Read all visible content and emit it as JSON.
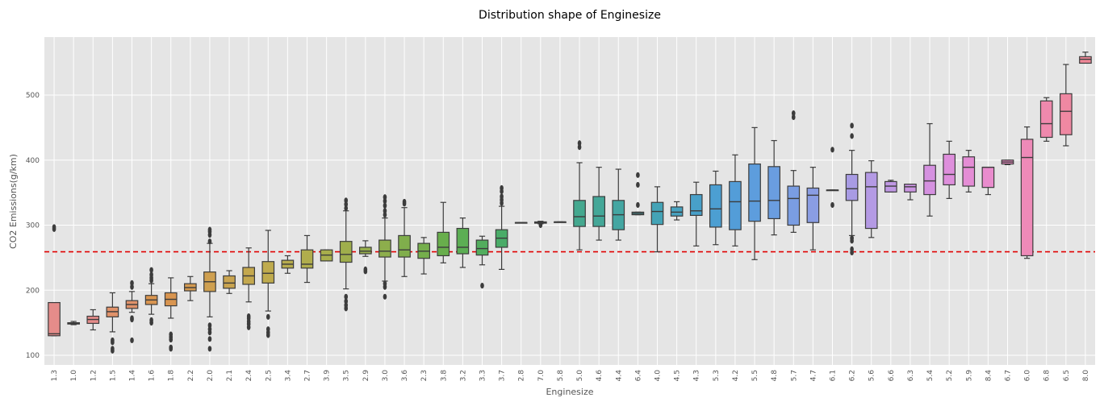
{
  "chart_data": {
    "type": "boxplot",
    "title": "Distribution shape of Enginesize",
    "xlabel": "Enginesize",
    "ylabel": "CO2 Emissions(g/km)",
    "ylim": [
      85,
      590
    ],
    "yticks": [
      100,
      200,
      300,
      400,
      500
    ],
    "grid": true,
    "reference_line": {
      "y": 259,
      "color": "#e00000",
      "style": "dashed"
    },
    "categories": [
      "1.3",
      "1.0",
      "1.2",
      "1.5",
      "1.4",
      "1.6",
      "1.8",
      "2.2",
      "2.0",
      "2.1",
      "2.4",
      "2.5",
      "3.4",
      "2.7",
      "3.9",
      "3.5",
      "2.9",
      "3.0",
      "3.6",
      "2.3",
      "3.8",
      "3.2",
      "3.3",
      "3.7",
      "2.8",
      "7.0",
      "5.8",
      "5.0",
      "4.6",
      "4.4",
      "6.4",
      "4.0",
      "4.5",
      "4.3",
      "5.3",
      "4.2",
      "5.5",
      "4.8",
      "5.7",
      "4.7",
      "6.1",
      "6.2",
      "5.6",
      "6.6",
      "6.3",
      "5.4",
      "5.2",
      "5.9",
      "8.4",
      "6.7",
      "6.0",
      "6.8",
      "6.5",
      "8.0"
    ],
    "boxes": [
      {
        "wlo": 130,
        "q1": 130,
        "med": 133,
        "q3": 181,
        "whi": 181,
        "fliers": [
          294,
          297
        ],
        "color": "#e58c8a"
      },
      {
        "wlo": 147,
        "q1": 148,
        "med": 149,
        "q3": 150,
        "whi": 152,
        "fliers": [],
        "color": "#e58c8a"
      },
      {
        "wlo": 139,
        "q1": 149,
        "med": 155,
        "q3": 160,
        "whi": 170,
        "fliers": [],
        "color": "#e58c8a"
      },
      {
        "wlo": 136,
        "q1": 159,
        "med": 167,
        "q3": 174,
        "whi": 196,
        "fliers": [
          107,
          110,
          120,
          123
        ],
        "color": "#e0926a"
      },
      {
        "wlo": 166,
        "q1": 172,
        "med": 178,
        "q3": 184,
        "whi": 198,
        "fliers": [
          123,
          155,
          157,
          205,
          211
        ],
        "color": "#e0926a"
      },
      {
        "wlo": 163,
        "q1": 178,
        "med": 185,
        "q3": 192,
        "whi": 210,
        "fliers": [
          150,
          154,
          215,
          219,
          224,
          231
        ],
        "color": "#d99550"
      },
      {
        "wlo": 157,
        "q1": 176,
        "med": 186,
        "q3": 196,
        "whi": 219,
        "fliers": [
          110,
          112,
          124,
          128,
          132
        ],
        "color": "#d99550"
      },
      {
        "wlo": 184,
        "q1": 199,
        "med": 204,
        "q3": 210,
        "whi": 221,
        "fliers": [],
        "color": "#d49a50"
      },
      {
        "wlo": 159,
        "q1": 198,
        "med": 213,
        "q3": 228,
        "whi": 272,
        "fliers": [
          110,
          125,
          135,
          140,
          146,
          275,
          285,
          290,
          293
        ],
        "color": "#cfa050"
      },
      {
        "wlo": 195,
        "q1": 203,
        "med": 211,
        "q3": 222,
        "whi": 230,
        "fliers": [],
        "color": "#c9a450"
      },
      {
        "wlo": 182,
        "q1": 209,
        "med": 222,
        "q3": 235,
        "whi": 265,
        "fliers": [
          143,
          148,
          152,
          157,
          160
        ],
        "color": "#c4a84e"
      },
      {
        "wlo": 168,
        "q1": 211,
        "med": 226,
        "q3": 244,
        "whi": 292,
        "fliers": [
          131,
          135,
          140,
          159
        ],
        "color": "#bfab4e"
      },
      {
        "wlo": 226,
        "q1": 234,
        "med": 240,
        "q3": 246,
        "whi": 253,
        "fliers": [],
        "color": "#b7ac4e"
      },
      {
        "wlo": 212,
        "q1": 234,
        "med": 240,
        "q3": 262,
        "whi": 284,
        "fliers": [],
        "color": "#b0ad4d"
      },
      {
        "wlo": 245,
        "q1": 245,
        "med": 254,
        "q3": 262,
        "whi": 262,
        "fliers": [],
        "color": "#a8ae4c"
      },
      {
        "wlo": 202,
        "q1": 243,
        "med": 255,
        "q3": 275,
        "whi": 322,
        "fliers": [
          172,
          177,
          183,
          190,
          326,
          332,
          338
        ],
        "color": "#9fae4c"
      },
      {
        "wlo": 252,
        "q1": 256,
        "med": 260,
        "q3": 266,
        "whi": 276,
        "fliers": [
          229,
          232
        ],
        "color": "#96ae4c"
      },
      {
        "wlo": 214,
        "q1": 251,
        "med": 260,
        "q3": 277,
        "whi": 311,
        "fliers": [
          190,
          205,
          210,
          316,
          322,
          330,
          337,
          343
        ],
        "color": "#8dae4c"
      },
      {
        "wlo": 221,
        "q1": 251,
        "med": 262,
        "q3": 284,
        "whi": 327,
        "fliers": [
          333,
          336
        ],
        "color": "#80ae4c"
      },
      {
        "wlo": 225,
        "q1": 249,
        "med": 260,
        "q3": 272,
        "whi": 281,
        "fliers": [],
        "color": "#75ae4c"
      },
      {
        "wlo": 242,
        "q1": 253,
        "med": 266,
        "q3": 289,
        "whi": 335,
        "fliers": [],
        "color": "#68ae4c"
      },
      {
        "wlo": 235,
        "q1": 256,
        "med": 266,
        "q3": 295,
        "whi": 311,
        "fliers": [],
        "color": "#5cae54"
      },
      {
        "wlo": 239,
        "q1": 254,
        "med": 264,
        "q3": 277,
        "whi": 283,
        "fliers": [
          207
        ],
        "color": "#52ad5e"
      },
      {
        "wlo": 232,
        "q1": 266,
        "med": 280,
        "q3": 293,
        "whi": 329,
        "fliers": [
          334,
          339,
          344,
          352,
          357
        ],
        "color": "#4aac68"
      },
      {
        "wlo": 304,
        "q1": 304,
        "med": 304,
        "q3": 304,
        "whi": 304,
        "fliers": [],
        "color": "#47ab72"
      },
      {
        "wlo": 302,
        "q1": 303,
        "med": 304,
        "q3": 305,
        "whi": 306,
        "fliers": [
          300
        ],
        "color": "#45aa7c"
      },
      {
        "wlo": 305,
        "q1": 305,
        "med": 305,
        "q3": 305,
        "whi": 305,
        "fliers": [],
        "color": "#44a985"
      },
      {
        "wlo": 262,
        "q1": 298,
        "med": 313,
        "q3": 338,
        "whi": 396,
        "fliers": [
          420,
          426
        ],
        "color": "#44a88f"
      },
      {
        "wlo": 277,
        "q1": 298,
        "med": 314,
        "q3": 344,
        "whi": 389,
        "fliers": [],
        "color": "#44a798"
      },
      {
        "wlo": 277,
        "q1": 293,
        "med": 316,
        "q3": 338,
        "whi": 386,
        "fliers": [],
        "color": "#44a6a2"
      },
      {
        "wlo": 316,
        "q1": 316,
        "med": 318,
        "q3": 320,
        "whi": 320,
        "fliers": [
          331,
          362,
          377
        ],
        "color": "#44a5ac"
      },
      {
        "wlo": 259,
        "q1": 301,
        "med": 321,
        "q3": 335,
        "whi": 359,
        "fliers": [],
        "color": "#44a3b6"
      },
      {
        "wlo": 308,
        "q1": 314,
        "med": 320,
        "q3": 328,
        "whi": 336,
        "fliers": [],
        "color": "#46a2c0"
      },
      {
        "wlo": 268,
        "q1": 315,
        "med": 322,
        "q3": 347,
        "whi": 366,
        "fliers": [],
        "color": "#48a0c9"
      },
      {
        "wlo": 270,
        "q1": 297,
        "med": 325,
        "q3": 362,
        "whi": 383,
        "fliers": [],
        "color": "#4c9fd2"
      },
      {
        "wlo": 268,
        "q1": 293,
        "med": 336,
        "q3": 367,
        "whi": 408,
        "fliers": [],
        "color": "#539dd8"
      },
      {
        "wlo": 247,
        "q1": 306,
        "med": 337,
        "q3": 394,
        "whi": 450,
        "fliers": [],
        "color": "#5d9ddd"
      },
      {
        "wlo": 285,
        "q1": 310,
        "med": 338,
        "q3": 390,
        "whi": 430,
        "fliers": [],
        "color": "#6a9de0"
      },
      {
        "wlo": 289,
        "q1": 300,
        "med": 341,
        "q3": 360,
        "whi": 384,
        "fliers": [
          466,
          472
        ],
        "color": "#7a9de2"
      },
      {
        "wlo": 262,
        "q1": 304,
        "med": 346,
        "q3": 357,
        "whi": 389,
        "fliers": [],
        "color": "#8a9de3"
      },
      {
        "wlo": 354,
        "q1": 354,
        "med": 354,
        "q3": 354,
        "whi": 354,
        "fliers": [
          331,
          416
        ],
        "color": "#999ce3"
      },
      {
        "wlo": 284,
        "q1": 338,
        "med": 356,
        "q3": 378,
        "whi": 415,
        "fliers": [
          258,
          263,
          276,
          280,
          437,
          453
        ],
        "color": "#a89be4"
      },
      {
        "wlo": 281,
        "q1": 295,
        "med": 359,
        "q3": 381,
        "whi": 399,
        "fliers": [],
        "color": "#b49ae4"
      },
      {
        "wlo": 351,
        "q1": 351,
        "med": 360,
        "q3": 367,
        "whi": 369,
        "fliers": [],
        "color": "#c098e4"
      },
      {
        "wlo": 339,
        "q1": 351,
        "med": 359,
        "q3": 363,
        "whi": 363,
        "fliers": [],
        "color": "#cb95e2"
      },
      {
        "wlo": 314,
        "q1": 347,
        "med": 368,
        "q3": 392,
        "whi": 456,
        "fliers": [],
        "color": "#d591e0"
      },
      {
        "wlo": 341,
        "q1": 362,
        "med": 378,
        "q3": 409,
        "whi": 429,
        "fliers": [],
        "color": "#de8fdc"
      },
      {
        "wlo": 351,
        "q1": 360,
        "med": 389,
        "q3": 405,
        "whi": 415,
        "fliers": [],
        "color": "#e48dd5"
      },
      {
        "wlo": 347,
        "q1": 358,
        "med": 389,
        "q3": 389,
        "whi": 389,
        "fliers": [],
        "color": "#e98ccd"
      },
      {
        "wlo": 393,
        "q1": 394,
        "med": 397,
        "q3": 400,
        "whi": 400,
        "fliers": [],
        "color": "#ec8bc3"
      },
      {
        "wlo": 249,
        "q1": 253,
        "med": 404,
        "q3": 432,
        "whi": 451,
        "fliers": [],
        "color": "#ee8ab8"
      },
      {
        "wlo": 429,
        "q1": 435,
        "med": 456,
        "q3": 491,
        "whi": 496,
        "fliers": [],
        "color": "#ef89ad"
      },
      {
        "wlo": 422,
        "q1": 439,
        "med": 475,
        "q3": 502,
        "whi": 547,
        "fliers": [],
        "color": "#ef88a2"
      },
      {
        "wlo": 549,
        "q1": 549,
        "med": 555,
        "q3": 559,
        "whi": 566,
        "fliers": [],
        "color": "#ef8797"
      }
    ]
  }
}
